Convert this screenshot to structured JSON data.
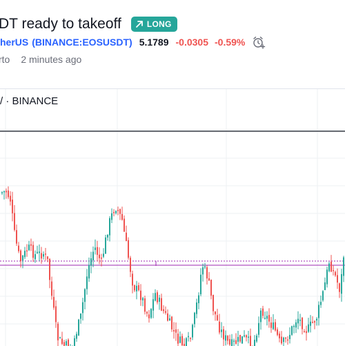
{
  "header": {
    "title": "DT ready to takeoff",
    "badge": {
      "label": "LONG",
      "color": "#26a69a",
      "icon": "arrow-up-right-icon"
    },
    "symbol": {
      "name": "herUS",
      "exchange_paren": "(BINANCE:EOSUSDT)",
      "price": "5.1789",
      "change": "-0.0305",
      "change_pct": "-0.59%",
      "alarm_icon": "alarm-clock-plus-icon"
    },
    "author": "rto",
    "time_ago": "2 minutes ago"
  },
  "chart": {
    "label": "/ · BINANCE",
    "up_color": "#26a69a",
    "down_color": "#ef5350",
    "line_color": "#9c27b0"
  }
}
